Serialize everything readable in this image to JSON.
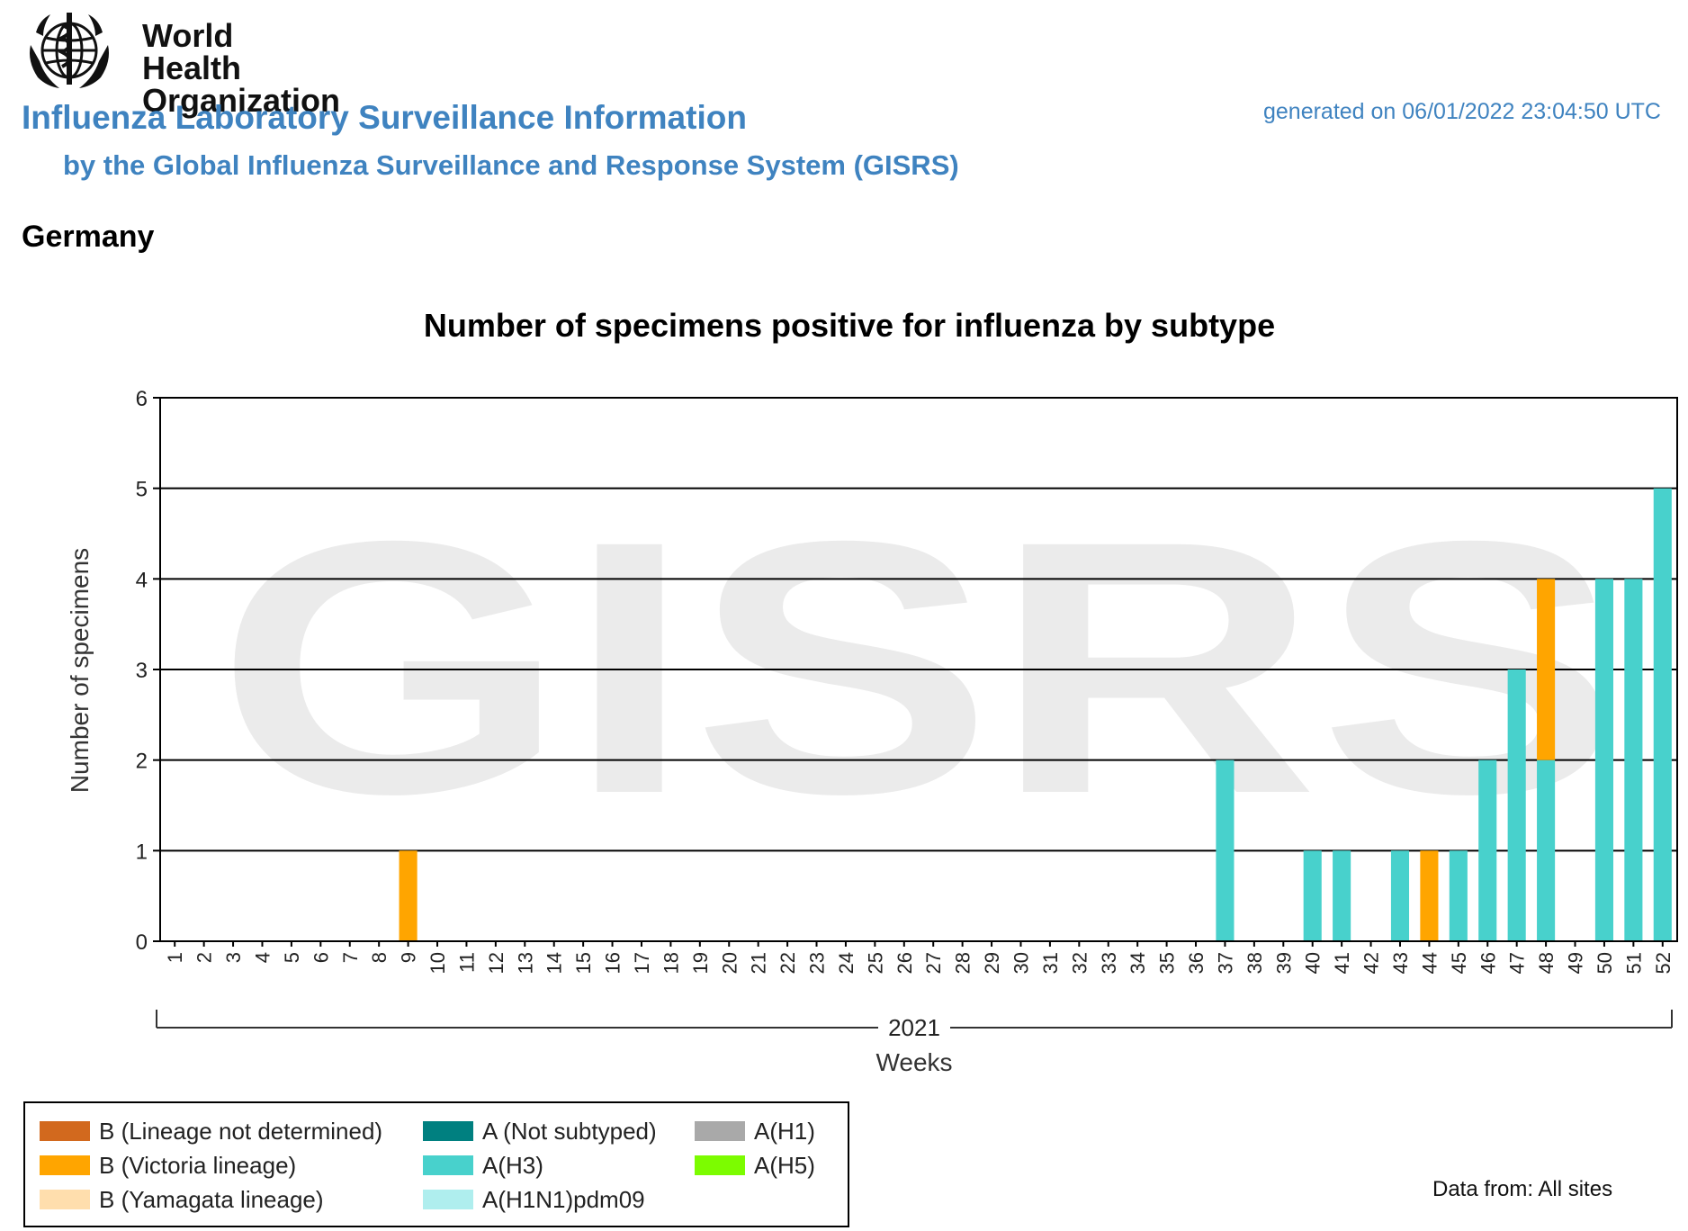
{
  "header": {
    "logo_text_line1": "World Health",
    "logo_text_line2": "Organization",
    "title": "Influenza Laboratory Surveillance Information",
    "subtitle": "by the Global Influenza Surveillance and Response System (GISRS)",
    "generated": "generated on 06/01/2022 23:04:50 UTC",
    "country": "Germany"
  },
  "chart_data": {
    "type": "bar",
    "stacked": true,
    "title": "Number of specimens positive for influenza by subtype",
    "xlabel": "Weeks",
    "ylabel": "Number of specimens",
    "year_label": "2021",
    "watermark": "GISRS",
    "ylim": [
      0,
      6
    ],
    "yticks": [
      0,
      1,
      2,
      3,
      4,
      5,
      6
    ],
    "grid": true,
    "categories": [
      "1",
      "2",
      "3",
      "4",
      "5",
      "6",
      "7",
      "8",
      "9",
      "10",
      "11",
      "12",
      "13",
      "14",
      "15",
      "16",
      "17",
      "18",
      "19",
      "20",
      "21",
      "22",
      "23",
      "24",
      "25",
      "26",
      "27",
      "28",
      "29",
      "30",
      "31",
      "32",
      "33",
      "34",
      "35",
      "36",
      "37",
      "38",
      "39",
      "40",
      "41",
      "42",
      "43",
      "44",
      "45",
      "46",
      "47",
      "48",
      "49",
      "50",
      "51",
      "52"
    ],
    "series": [
      {
        "name": "A(H3)",
        "color": "#48d1cc",
        "values": [
          0,
          0,
          0,
          0,
          0,
          0,
          0,
          0,
          0,
          0,
          0,
          0,
          0,
          0,
          0,
          0,
          0,
          0,
          0,
          0,
          0,
          0,
          0,
          0,
          0,
          0,
          0,
          0,
          0,
          0,
          0,
          0,
          0,
          0,
          0,
          0,
          2,
          0,
          0,
          1,
          1,
          0,
          1,
          0,
          1,
          2,
          3,
          2,
          0,
          4,
          4,
          5
        ]
      },
      {
        "name": "B (Victoria lineage)",
        "color": "#ffa500",
        "values": [
          0,
          0,
          0,
          0,
          0,
          0,
          0,
          0,
          1,
          0,
          0,
          0,
          0,
          0,
          0,
          0,
          0,
          0,
          0,
          0,
          0,
          0,
          0,
          0,
          0,
          0,
          0,
          0,
          0,
          0,
          0,
          0,
          0,
          0,
          0,
          0,
          0,
          0,
          0,
          0,
          0,
          0,
          0,
          1,
          0,
          0,
          0,
          2,
          0,
          0,
          0,
          0
        ]
      }
    ]
  },
  "legend": {
    "items": [
      {
        "label": "B (Lineage not determined)",
        "color": "#d2691e"
      },
      {
        "label": "B (Victoria lineage)",
        "color": "#ffa500"
      },
      {
        "label": "B (Yamagata lineage)",
        "color": "#ffdead"
      },
      {
        "label": "A (Not subtyped)",
        "color": "#008080"
      },
      {
        "label": "A(H3)",
        "color": "#48d1cc"
      },
      {
        "label": "A(H1N1)pdm09",
        "color": "#afeeee"
      },
      {
        "label": "A(H1)",
        "color": "#a9a9a9"
      },
      {
        "label": "A(H5)",
        "color": "#7cfc00"
      }
    ],
    "data_from": "Data from: All sites"
  }
}
